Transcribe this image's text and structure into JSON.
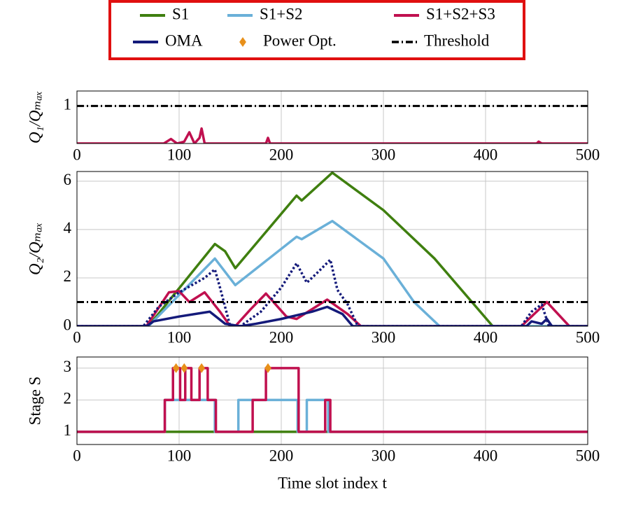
{
  "chart_data": [
    {
      "type": "line",
      "ylabel": "Q₁/Qₘₐₓ",
      "xlim": [
        0,
        500
      ],
      "xticks": [
        0,
        100,
        200,
        300,
        400,
        500
      ],
      "ylim": [
        0,
        1.4
      ],
      "yticks": [
        1
      ],
      "grid": true,
      "series": [
        {
          "color": "#c0104f",
          "style": "solid",
          "x": [
            0,
            85,
            92,
            98,
            105,
            110,
            115,
            120,
            122,
            125,
            185,
            187,
            189,
            450,
            452,
            455,
            500
          ],
          "values": [
            0,
            0,
            0.12,
            0,
            0.05,
            0.3,
            0,
            0.15,
            0.4,
            0,
            0,
            0.15,
            0,
            0,
            0.05,
            0,
            0
          ]
        },
        {
          "color": "#000000",
          "style": "dashdot",
          "x": [
            0,
            500
          ],
          "values": [
            1,
            1
          ]
        }
      ]
    },
    {
      "type": "line",
      "ylabel": "Q₂/Qₘₐₓ",
      "xlim": [
        0,
        500
      ],
      "xticks": [
        0,
        100,
        200,
        300,
        400,
        500
      ],
      "ylim": [
        0,
        6.4
      ],
      "yticks": [
        0,
        2,
        4,
        6
      ],
      "grid": true,
      "series": [
        {
          "name": "S1",
          "color": "#3f7f0f",
          "style": "solid",
          "x": [
            0,
            70,
            135,
            145,
            155,
            215,
            220,
            250,
            300,
            350,
            407,
            500
          ],
          "values": [
            0,
            0,
            3.4,
            3.1,
            2.4,
            5.4,
            5.2,
            6.35,
            4.8,
            2.8,
            0,
            0
          ]
        },
        {
          "name": "S1+S2",
          "color": "#6ab0d8",
          "style": "solid",
          "x": [
            0,
            70,
            135,
            155,
            215,
            220,
            250,
            300,
            330,
            355,
            500
          ],
          "values": [
            0,
            0,
            2.8,
            1.7,
            3.7,
            3.6,
            4.35,
            2.8,
            1.0,
            0,
            0
          ]
        },
        {
          "name": "S1+S2+S3",
          "color": "#c0104f",
          "style": "solid",
          "x": [
            0,
            68,
            90,
            100,
            110,
            125,
            140,
            150,
            155,
            170,
            185,
            205,
            215,
            245,
            265,
            278,
            435,
            460,
            482,
            500
          ],
          "values": [
            0,
            0,
            1.4,
            1.45,
            1.0,
            1.4,
            0.6,
            0,
            0,
            0.7,
            1.35,
            0.4,
            0.3,
            1.1,
            0.5,
            0,
            0,
            1.0,
            0,
            0
          ]
        },
        {
          "name": "OMA",
          "color": "#141a7a",
          "style": "solid",
          "x": [
            0,
            68,
            75,
            100,
            130,
            145,
            160,
            175,
            200,
            230,
            245,
            260,
            270,
            440,
            445,
            455,
            460,
            465,
            500
          ],
          "values": [
            0,
            0,
            0.2,
            0.4,
            0.6,
            0.1,
            0,
            0.1,
            0.3,
            0.6,
            0.8,
            0.5,
            0,
            0,
            0.2,
            0.1,
            0.3,
            0,
            0
          ]
        },
        {
          "color": "#141a7a",
          "style": "dotted",
          "x": [
            0,
            65,
            80,
            100,
            125,
            135,
            140,
            150,
            160,
            180,
            200,
            215,
            225,
            235,
            248,
            255,
            265,
            275,
            435,
            445,
            455,
            462,
            500
          ],
          "values": [
            0,
            0,
            0.8,
            1.4,
            2.0,
            2.35,
            1.6,
            0,
            0,
            0.6,
            1.6,
            2.6,
            1.8,
            2.2,
            2.75,
            1.5,
            0.9,
            0,
            0,
            0.6,
            0.9,
            0,
            0
          ]
        },
        {
          "name": "Threshold",
          "color": "#000000",
          "style": "dashdot",
          "x": [
            0,
            500
          ],
          "values": [
            1,
            1
          ]
        }
      ]
    },
    {
      "type": "line",
      "ylabel": "Stage S",
      "xlabel": "Time slot index t",
      "xlim": [
        0,
        500
      ],
      "xticks": [
        0,
        100,
        200,
        300,
        400,
        500
      ],
      "ylim": [
        0.6,
        3.35
      ],
      "yticks": [
        1,
        2,
        3
      ],
      "grid": true,
      "series": [
        {
          "color": "#3f7f0f",
          "style": "solid",
          "x": [
            0,
            500
          ],
          "values": [
            1,
            1
          ]
        },
        {
          "color": "#6ab0d8",
          "style": "solid",
          "x": [
            0,
            86,
            86,
            135,
            135,
            158,
            158,
            216,
            216,
            225,
            225,
            246,
            246,
            500
          ],
          "values": [
            1,
            1,
            2,
            2,
            1,
            1,
            2,
            2,
            1,
            1,
            2,
            2,
            1,
            1
          ]
        },
        {
          "color": "#c0104f",
          "style": "solid",
          "x": [
            0,
            86,
            86,
            94,
            94,
            101,
            101,
            106,
            106,
            112,
            112,
            120,
            120,
            128,
            128,
            136,
            136,
            172,
            172,
            185,
            185,
            217,
            217,
            243,
            243,
            248,
            248,
            500
          ],
          "values": [
            1,
            1,
            2,
            2,
            3,
            3,
            2,
            2,
            3,
            3,
            2,
            2,
            3,
            3,
            2,
            2,
            1,
            1,
            2,
            2,
            3,
            3,
            1,
            1,
            2,
            2,
            1,
            1
          ]
        },
        {
          "name": "Power Opt.",
          "color": "#e8901a",
          "style": "markers",
          "x": [
            97,
            105,
            122,
            187
          ],
          "values": [
            3,
            3,
            3,
            3
          ]
        }
      ]
    }
  ]
}
